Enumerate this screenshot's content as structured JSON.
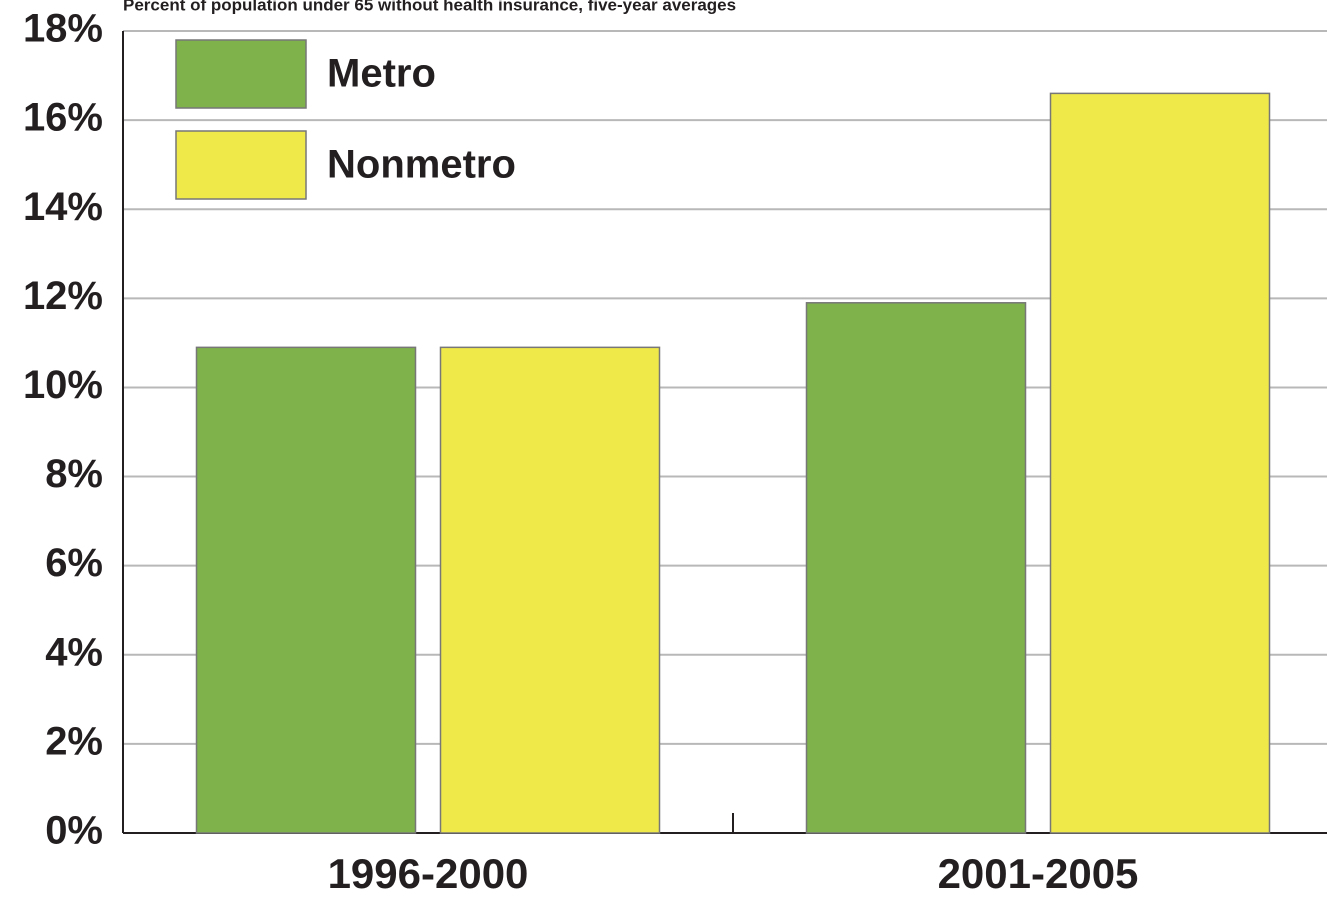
{
  "chart_data": {
    "type": "bar",
    "subtitle": "Percent of population under 65 without health insurance, five-year averages",
    "categories": [
      "1996-2000",
      "2001-2005"
    ],
    "series": [
      {
        "name": "Metro",
        "color": "#7fb24a",
        "values": [
          10.9,
          11.9
        ]
      },
      {
        "name": "Nonmetro",
        "color": "#efe94a",
        "values": [
          10.9,
          16.6
        ]
      }
    ],
    "ylim": [
      0,
      18
    ],
    "yticks": [
      {
        "value": 0,
        "label": "0%"
      },
      {
        "value": 2,
        "label": "2%"
      },
      {
        "value": 4,
        "label": "4%"
      },
      {
        "value": 6,
        "label": "6%"
      },
      {
        "value": 8,
        "label": "8%"
      },
      {
        "value": 10,
        "label": "10%"
      },
      {
        "value": 12,
        "label": "12%"
      },
      {
        "value": 14,
        "label": "14%"
      },
      {
        "value": 16,
        "label": "16%"
      },
      {
        "value": 18,
        "label": "18%"
      }
    ],
    "grid": true,
    "legend": "top-left"
  }
}
